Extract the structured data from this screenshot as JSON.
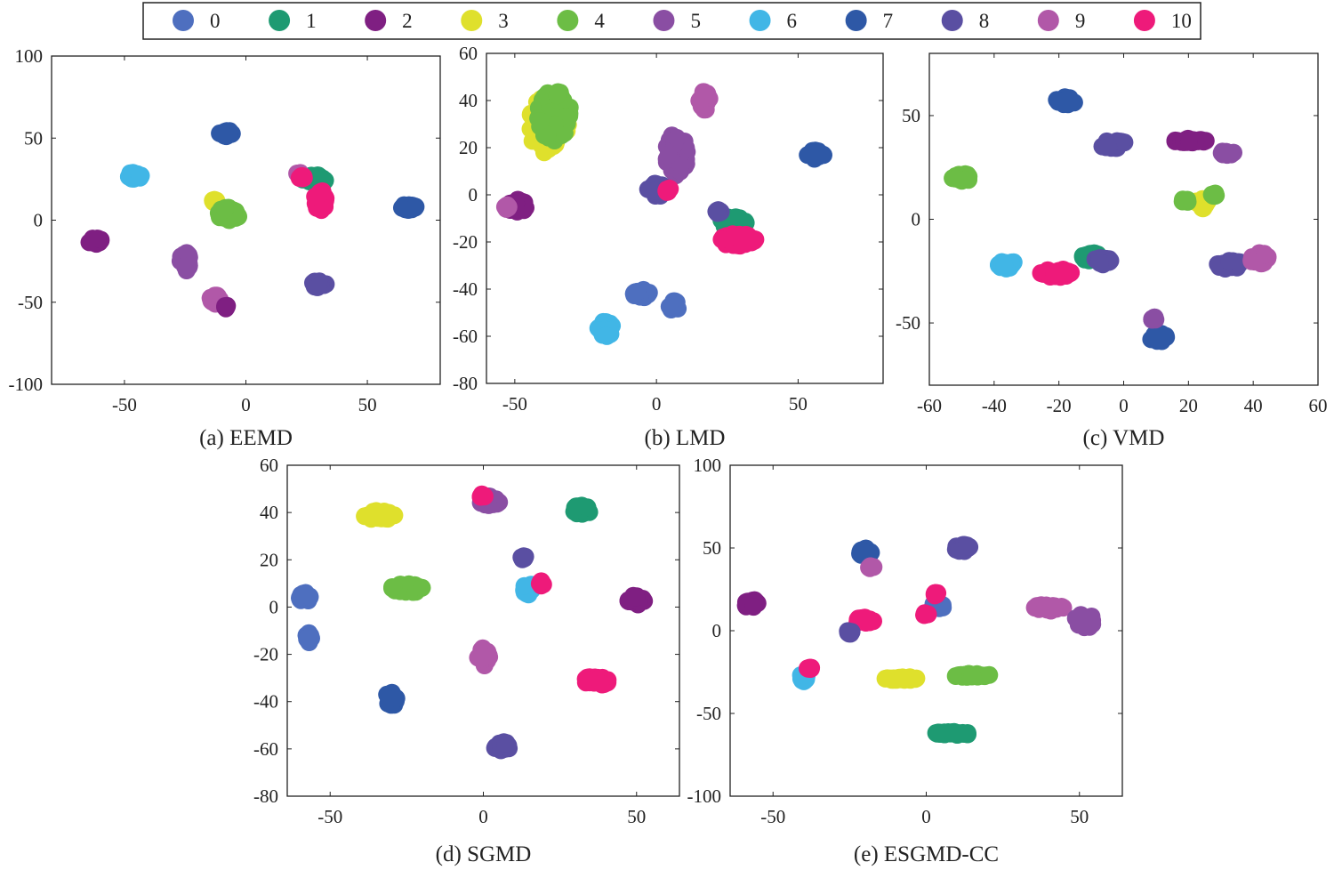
{
  "legend": {
    "items": [
      {
        "label": "0",
        "color": "#4e6fbf"
      },
      {
        "label": "1",
        "color": "#1e9a72"
      },
      {
        "label": "2",
        "color": "#7f1f82"
      },
      {
        "label": "3",
        "color": "#dfe02c"
      },
      {
        "label": "4",
        "color": "#6cbd45"
      },
      {
        "label": "5",
        "color": "#8a4ea3"
      },
      {
        "label": "6",
        "color": "#41b6e6"
      },
      {
        "label": "7",
        "color": "#2e58a6"
      },
      {
        "label": "8",
        "color": "#5a4fa2"
      },
      {
        "label": "9",
        "color": "#b158a8"
      },
      {
        "label": "10",
        "color": "#ee1a7a"
      }
    ]
  },
  "chart_data": [
    {
      "type": "scatter",
      "title": "(a) EEMD",
      "xlim": [
        -80,
        80
      ],
      "ylim": [
        -100,
        100
      ],
      "xticks": [
        -50,
        0,
        50
      ],
      "yticks": [
        -100,
        -50,
        0,
        50,
        100
      ],
      "clusters": [
        {
          "cls": 7,
          "x": -8,
          "y": 53,
          "sx": 3,
          "sy": 2
        },
        {
          "cls": 6,
          "x": -46,
          "y": 27,
          "sx": 3,
          "sy": 2
        },
        {
          "cls": 2,
          "x": -62,
          "y": -13,
          "sx": 3,
          "sy": 2
        },
        {
          "cls": 5,
          "x": -25,
          "y": -25,
          "sx": 2,
          "sy": 6
        },
        {
          "cls": 9,
          "x": -12,
          "y": -48,
          "sx": 3,
          "sy": 3
        },
        {
          "cls": 2,
          "x": -8,
          "y": -53,
          "sx": 1,
          "sy": 1
        },
        {
          "cls": 3,
          "x": -13,
          "y": 12,
          "sx": 1,
          "sy": 1
        },
        {
          "cls": 4,
          "x": -7,
          "y": 4,
          "sx": 5,
          "sy": 4
        },
        {
          "cls": 1,
          "x": 28,
          "y": 25,
          "sx": 5,
          "sy": 3
        },
        {
          "cls": 10,
          "x": 31,
          "y": 12,
          "sx": 3,
          "sy": 6
        },
        {
          "cls": 9,
          "x": 22,
          "y": 28,
          "sx": 1,
          "sy": 1
        },
        {
          "cls": 10,
          "x": 23,
          "y": 26,
          "sx": 1,
          "sy": 1
        },
        {
          "cls": 7,
          "x": 67,
          "y": 8,
          "sx": 3,
          "sy": 2
        },
        {
          "cls": 8,
          "x": 30,
          "y": -39,
          "sx": 3,
          "sy": 2
        }
      ]
    },
    {
      "type": "scatter",
      "title": "(b) LMD",
      "xlim": [
        -60,
        80
      ],
      "ylim": [
        -80,
        60
      ],
      "xticks": [
        -50,
        0,
        50
      ],
      "yticks": [
        -80,
        -60,
        -40,
        -20,
        0,
        20,
        40,
        60
      ],
      "clusters": [
        {
          "cls": 3,
          "x": -38,
          "y": 30,
          "sx": 7,
          "sy": 13
        },
        {
          "cls": 4,
          "x": -36,
          "y": 33,
          "sx": 6,
          "sy": 11
        },
        {
          "cls": 9,
          "x": 17,
          "y": 40,
          "sx": 2,
          "sy": 4
        },
        {
          "cls": 5,
          "x": 7,
          "y": 17,
          "sx": 4,
          "sy": 9
        },
        {
          "cls": 7,
          "x": 56,
          "y": 17,
          "sx": 3,
          "sy": 2
        },
        {
          "cls": 2,
          "x": -49,
          "y": -5,
          "sx": 3,
          "sy": 3
        },
        {
          "cls": 9,
          "x": -53,
          "y": -5,
          "sx": 1,
          "sy": 1
        },
        {
          "cls": 8,
          "x": 0,
          "y": 2,
          "sx": 3,
          "sy": 3
        },
        {
          "cls": 10,
          "x": 4,
          "y": 2,
          "sx": 1,
          "sy": 1
        },
        {
          "cls": 1,
          "x": 27,
          "y": -12,
          "sx": 5,
          "sy": 3
        },
        {
          "cls": 10,
          "x": 29,
          "y": -19,
          "sx": 6,
          "sy": 3
        },
        {
          "cls": 8,
          "x": 22,
          "y": -7,
          "sx": 1,
          "sy": 1
        },
        {
          "cls": 0,
          "x": -5,
          "y": -42,
          "sx": 3,
          "sy": 2
        },
        {
          "cls": 0,
          "x": 6,
          "y": -47,
          "sx": 2,
          "sy": 2
        },
        {
          "cls": 6,
          "x": -18,
          "y": -57,
          "sx": 3,
          "sy": 4
        }
      ]
    },
    {
      "type": "scatter",
      "title": "(c) VMD",
      "xlim": [
        -60,
        60
      ],
      "ylim": [
        -80,
        80
      ],
      "xticks": [
        -60,
        -40,
        -20,
        0,
        20,
        40,
        60
      ],
      "yticks": [
        -50,
        0,
        50
      ],
      "clusters": [
        {
          "cls": 7,
          "x": -18,
          "y": 57,
          "sx": 3,
          "sy": 2
        },
        {
          "cls": 8,
          "x": -3,
          "y": 36,
          "sx": 4,
          "sy": 2
        },
        {
          "cls": 2,
          "x": 20,
          "y": 38,
          "sx": 6,
          "sy": 1
        },
        {
          "cls": 5,
          "x": 32,
          "y": 32,
          "sx": 2,
          "sy": 1
        },
        {
          "cls": 4,
          "x": -50,
          "y": 20,
          "sx": 3,
          "sy": 2
        },
        {
          "cls": 3,
          "x": 24,
          "y": 8,
          "sx": 2,
          "sy": 3
        },
        {
          "cls": 4,
          "x": 19,
          "y": 9,
          "sx": 1,
          "sy": 1
        },
        {
          "cls": 4,
          "x": 28,
          "y": 12,
          "sx": 1,
          "sy": 1
        },
        {
          "cls": 6,
          "x": -36,
          "y": -22,
          "sx": 3,
          "sy": 2
        },
        {
          "cls": 10,
          "x": -21,
          "y": -26,
          "sx": 5,
          "sy": 2
        },
        {
          "cls": 1,
          "x": -10,
          "y": -18,
          "sx": 3,
          "sy": 2
        },
        {
          "cls": 8,
          "x": -7,
          "y": -20,
          "sx": 3,
          "sy": 2
        },
        {
          "cls": 8,
          "x": 33,
          "y": -22,
          "sx": 4,
          "sy": 2
        },
        {
          "cls": 9,
          "x": 42,
          "y": -19,
          "sx": 3,
          "sy": 3
        },
        {
          "cls": 7,
          "x": 11,
          "y": -57,
          "sx": 3,
          "sy": 2
        },
        {
          "cls": 5,
          "x": 9,
          "y": -48,
          "sx": 1,
          "sy": 1
        }
      ]
    },
    {
      "type": "scatter",
      "title": "(d) SGMD",
      "xlim": [
        -64,
        64
      ],
      "ylim": [
        -80,
        60
      ],
      "xticks": [
        -50,
        0,
        50
      ],
      "yticks": [
        -80,
        -60,
        -40,
        -20,
        0,
        20,
        40,
        60
      ],
      "clusters": [
        {
          "cls": 3,
          "x": -34,
          "y": 39,
          "sx": 5,
          "sy": 2
        },
        {
          "cls": 5,
          "x": 2,
          "y": 45,
          "sx": 4,
          "sy": 2
        },
        {
          "cls": 10,
          "x": 0,
          "y": 47,
          "sx": 1,
          "sy": 1
        },
        {
          "cls": 1,
          "x": 32,
          "y": 41,
          "sx": 3,
          "sy": 2
        },
        {
          "cls": 8,
          "x": 13,
          "y": 21,
          "sx": 1,
          "sy": 1
        },
        {
          "cls": 6,
          "x": 15,
          "y": 8,
          "sx": 2,
          "sy": 3
        },
        {
          "cls": 10,
          "x": 19,
          "y": 10,
          "sx": 1,
          "sy": 1
        },
        {
          "cls": 4,
          "x": -25,
          "y": 8,
          "sx": 5,
          "sy": 2
        },
        {
          "cls": 2,
          "x": 50,
          "y": 3,
          "sx": 3,
          "sy": 2
        },
        {
          "cls": 0,
          "x": -58,
          "y": 4,
          "sx": 2,
          "sy": 2
        },
        {
          "cls": 0,
          "x": -57,
          "y": -13,
          "sx": 1,
          "sy": 2
        },
        {
          "cls": 9,
          "x": 0,
          "y": -21,
          "sx": 2,
          "sy": 4
        },
        {
          "cls": 10,
          "x": 37,
          "y": -31,
          "sx": 4,
          "sy": 2
        },
        {
          "cls": 7,
          "x": -30,
          "y": -39,
          "sx": 2,
          "sy": 3
        },
        {
          "cls": 8,
          "x": 6,
          "y": -59,
          "sx": 3,
          "sy": 2
        }
      ]
    },
    {
      "type": "scatter",
      "title": "(e) ESGMD-CC",
      "xlim": [
        -64,
        64
      ],
      "ylim": [
        -100,
        100
      ],
      "xticks": [
        -50,
        0,
        50
      ],
      "yticks": [
        -100,
        -50,
        0,
        50,
        100
      ],
      "clusters": [
        {
          "cls": 7,
          "x": -20,
          "y": 47,
          "sx": 2,
          "sy": 3
        },
        {
          "cls": 9,
          "x": -18,
          "y": 38,
          "sx": 1,
          "sy": 1
        },
        {
          "cls": 8,
          "x": 12,
          "y": 50,
          "sx": 3,
          "sy": 2
        },
        {
          "cls": 2,
          "x": -57,
          "y": 16,
          "sx": 2,
          "sy": 3
        },
        {
          "cls": 0,
          "x": 4,
          "y": 15,
          "sx": 2,
          "sy": 2
        },
        {
          "cls": 10,
          "x": 3,
          "y": 22,
          "sx": 1,
          "sy": 1
        },
        {
          "cls": 10,
          "x": 0,
          "y": 10,
          "sx": 1,
          "sy": 1
        },
        {
          "cls": 10,
          "x": -20,
          "y": 6,
          "sx": 3,
          "sy": 2
        },
        {
          "cls": 8,
          "x": -25,
          "y": -1,
          "sx": 1,
          "sy": 1
        },
        {
          "cls": 9,
          "x": 40,
          "y": 14,
          "sx": 5,
          "sy": 2
        },
        {
          "cls": 5,
          "x": 52,
          "y": 6,
          "sx": 4,
          "sy": 4
        },
        {
          "cls": 6,
          "x": -40,
          "y": -28,
          "sx": 1,
          "sy": 3
        },
        {
          "cls": 10,
          "x": -38,
          "y": -23,
          "sx": 1,
          "sy": 1
        },
        {
          "cls": 3,
          "x": -8,
          "y": -29,
          "sx": 6,
          "sy": 1
        },
        {
          "cls": 4,
          "x": 15,
          "y": -27,
          "sx": 6,
          "sy": 1
        },
        {
          "cls": 1,
          "x": 9,
          "y": -62,
          "sx": 6,
          "sy": 1
        }
      ]
    }
  ]
}
